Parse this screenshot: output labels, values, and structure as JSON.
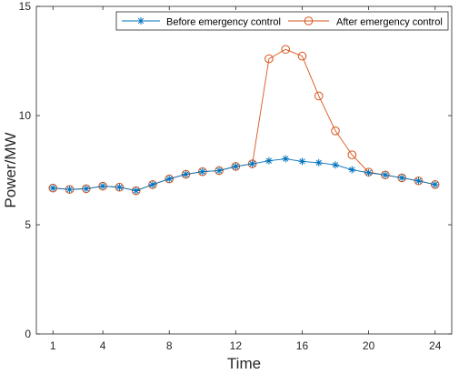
{
  "chart_data": {
    "type": "line",
    "xlabel": "Time",
    "ylabel": "Power/MW",
    "xlim": [
      0,
      25
    ],
    "ylim": [
      0,
      15
    ],
    "xticks": [
      1,
      4,
      8,
      12,
      16,
      20,
      24
    ],
    "xtick_labels": [
      "1",
      "4",
      "8",
      "12",
      "16",
      "20",
      "24"
    ],
    "yticks": [
      0,
      5,
      10,
      15
    ],
    "ytick_labels": [
      "0",
      "5",
      "10",
      "15"
    ],
    "grid": false,
    "legend_position": "top-right",
    "x": [
      1,
      2,
      3,
      4,
      5,
      6,
      7,
      8,
      9,
      10,
      11,
      12,
      13,
      14,
      15,
      16,
      17,
      18,
      19,
      20,
      21,
      22,
      23,
      24
    ],
    "series": [
      {
        "name": "Before emergency control",
        "marker": "asterisk",
        "color": "#0072BD",
        "values": [
          6.68,
          6.62,
          6.65,
          6.77,
          6.72,
          6.56,
          6.84,
          7.1,
          7.31,
          7.43,
          7.48,
          7.67,
          7.79,
          7.93,
          8.02,
          7.9,
          7.84,
          7.74,
          7.52,
          7.38,
          7.28,
          7.15,
          7.01,
          6.84
        ]
      },
      {
        "name": "After emergency control",
        "marker": "circle",
        "color": "#D95319",
        "values": [
          6.68,
          6.62,
          6.65,
          6.77,
          6.72,
          6.56,
          6.84,
          7.1,
          7.31,
          7.43,
          7.48,
          7.67,
          7.79,
          12.6,
          13.03,
          12.72,
          10.9,
          9.3,
          8.2,
          7.41,
          7.28,
          7.15,
          7.01,
          6.84
        ]
      }
    ]
  }
}
